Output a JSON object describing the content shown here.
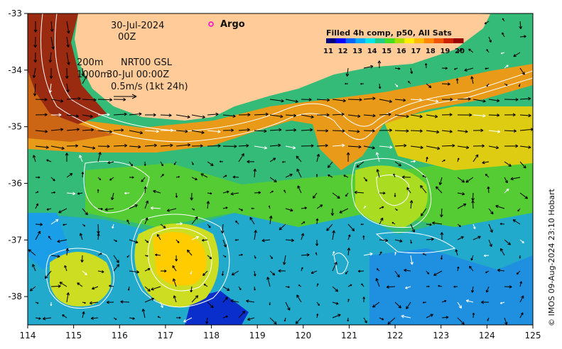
{
  "map": {
    "lon_range": [
      114,
      125
    ],
    "lat_range": [
      -38.5,
      -33
    ],
    "x_ticks": [
      "114",
      "115",
      "116",
      "117",
      "118",
      "119",
      "120",
      "121",
      "122",
      "123",
      "124",
      "125"
    ],
    "y_ticks": [
      "-33",
      "-34",
      "-35",
      "-36",
      "-37",
      "-38"
    ],
    "land_color": "#ffcc99",
    "contour_color": "#ffffff",
    "arrow_color": "#000000"
  },
  "annotations": {
    "date": "30-Jul-2024",
    "time": "00Z",
    "depth_200": "200m",
    "depth_1000": "1000m",
    "product": "NRT00 GSL",
    "product_time": "30-Jul 00:00Z",
    "scale_label": "0.5m/s (1kt 24h)"
  },
  "legend": {
    "argo_label": "Argo",
    "argo_color": "#ff00cc"
  },
  "colorbar": {
    "title": "Filled 4h comp, p50, All Sats",
    "ticks": [
      "11",
      "12",
      "13",
      "14",
      "15",
      "16",
      "17",
      "18",
      "19",
      "20"
    ],
    "colors": [
      "#00007f",
      "#0000ff",
      "#0066ff",
      "#00aaff",
      "#00e5e5",
      "#22cc88",
      "#44dd22",
      "#aadd00",
      "#ffee00",
      "#ffbb00",
      "#ff8800",
      "#ee5500",
      "#cc2200",
      "#990000"
    ]
  },
  "credit": "© IMOS 09-Aug-2024 23:10 Hobart"
}
